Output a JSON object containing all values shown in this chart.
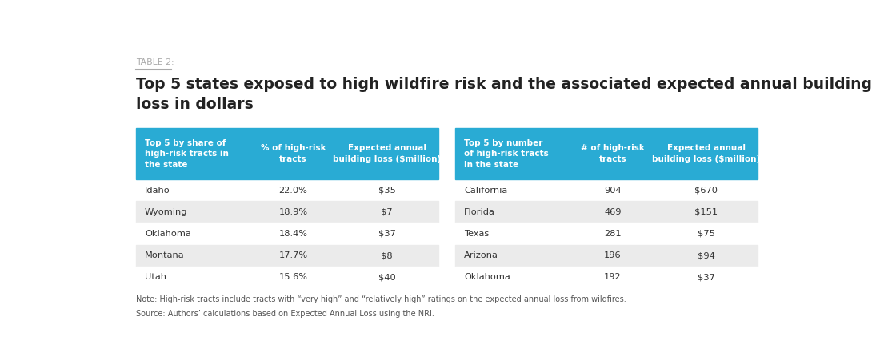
{
  "table_label": "TABLE 2:",
  "title_line1": "Top 5 states exposed to high wildfire risk and the associated expected annual building",
  "title_line2": "loss in dollars",
  "header_bg_color": "#29ABD4",
  "header_text_color": "#FFFFFF",
  "row_bg_odd": "#FFFFFF",
  "row_bg_even": "#EBEBEB",
  "left_table": {
    "headers": [
      "Top 5 by share of\nhigh-risk tracts in\nthe state",
      "% of high-risk\ntracts",
      "Expected annual\nbuilding loss ($million)"
    ],
    "rows": [
      [
        "Idaho",
        "22.0%",
        "$35"
      ],
      [
        "Wyoming",
        "18.9%",
        "$7"
      ],
      [
        "Oklahoma",
        "18.4%",
        "$37"
      ],
      [
        "Montana",
        "17.7%",
        "$8"
      ],
      [
        "Utah",
        "15.6%",
        "$40"
      ]
    ]
  },
  "right_table": {
    "headers": [
      "Top 5 by number\nof high-risk tracts\nin the state",
      "# of high-risk\ntracts",
      "Expected annual\nbuilding loss ($million)"
    ],
    "rows": [
      [
        "California",
        "904",
        "$670"
      ],
      [
        "Florida",
        "469",
        "$151"
      ],
      [
        "Texas",
        "281",
        "$75"
      ],
      [
        "Arizona",
        "196",
        "$94"
      ],
      [
        "Oklahoma",
        "192",
        "$37"
      ]
    ]
  },
  "note": "Note: High-risk tracts include tracts with “very high” and “relatively high” ratings on the expected annual loss from wildfires.",
  "source": "Source: Authors’ calculations based on Expected Annual Loss using the NRI.",
  "col_props": [
    0.38,
    0.28,
    0.34
  ]
}
